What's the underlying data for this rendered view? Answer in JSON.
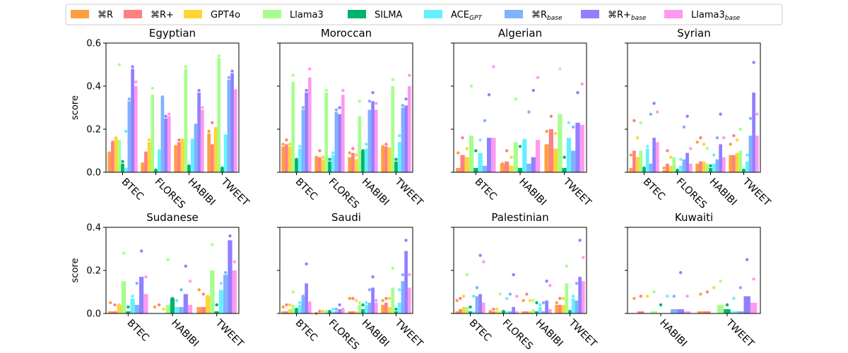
{
  "legend": {
    "items": [
      {
        "label": "⌘R",
        "sub": "",
        "color": "#ff9f40"
      },
      {
        "label": "⌘R+",
        "sub": "",
        "color": "#ff8080"
      },
      {
        "label": "GPT4o",
        "sub": "",
        "color": "#ffd633"
      },
      {
        "label": "Llama3",
        "sub": "",
        "color": "#a6ff8c"
      },
      {
        "label": "SILMA",
        "sub": "",
        "color": "#00b36b"
      },
      {
        "label": "ACE",
        "sub": "GPT",
        "color": "#66f0ff"
      },
      {
        "label": "⌘R",
        "sub": "base",
        "color": "#7fb2ff"
      },
      {
        "label": "⌘R+",
        "sub": "base",
        "color": "#9080ff"
      },
      {
        "label": "Llama3",
        "sub": "base",
        "color": "#ff99f0"
      }
    ]
  },
  "chart_data": [
    {
      "type": "bar",
      "title": "Egyptian",
      "ylabel": "score",
      "ylim": [
        0,
        0.6
      ],
      "yticks": [
        "0.0",
        "0.2",
        "0.4",
        "0.6"
      ],
      "categories": [
        "BTEC",
        "FLORES",
        "HABIBI",
        "TWEET"
      ],
      "values": [
        [
          0.09,
          0.14,
          0.16,
          0.15,
          0.04,
          0.02,
          0.33,
          0.48,
          0.4
        ],
        [
          0.04,
          0.09,
          0.14,
          0.36,
          0.01,
          0.1,
          0.35,
          0.25,
          0.26
        ],
        [
          0.12,
          0.14,
          0.15,
          0.48,
          0.03,
          0.15,
          0.22,
          0.37,
          0.29
        ],
        [
          0.18,
          0.13,
          0.21,
          0.53,
          0.02,
          0.17,
          0.43,
          0.46,
          0.38
        ]
      ],
      "points": [
        [
          0.09,
          0.14,
          0.16,
          0.5,
          0.05,
          0.19,
          0.34,
          0.49,
          0.42
        ],
        [
          0.04,
          0.09,
          0.15,
          0.39,
          0.01,
          0.1,
          0.35,
          0.26,
          0.27
        ],
        [
          0.12,
          0.15,
          0.15,
          0.49,
          0.03,
          0.15,
          0.22,
          0.38,
          0.3
        ],
        [
          0.19,
          0.23,
          0.2,
          0.54,
          0.02,
          0.17,
          0.44,
          0.47,
          0.38
        ]
      ]
    },
    {
      "type": "bar",
      "title": "Moroccan",
      "ylabel": "",
      "ylim": [
        0,
        0.6
      ],
      "yticks": [],
      "categories": [
        "BTEC",
        "FLORES",
        "HABIBI",
        "TWEET"
      ],
      "values": [
        [
          0.12,
          0.13,
          0.12,
          0.42,
          0.06,
          0.11,
          0.29,
          0.37,
          0.44
        ],
        [
          0.07,
          0.07,
          0.06,
          0.37,
          0.05,
          0.08,
          0.28,
          0.27,
          0.36
        ],
        [
          0.07,
          0.09,
          0.06,
          0.26,
          0.1,
          0.11,
          0.29,
          0.33,
          0.29
        ],
        [
          0.12,
          0.12,
          0.11,
          0.4,
          0.05,
          0.14,
          0.3,
          0.31,
          0.4
        ]
      ],
      "points": [
        [
          0.13,
          0.15,
          0.13,
          0.45,
          0.06,
          0.12,
          0.3,
          0.38,
          0.48
        ],
        [
          0.07,
          0.1,
          0.07,
          0.38,
          0.06,
          0.09,
          0.29,
          0.3,
          0.38
        ],
        [
          0.09,
          0.11,
          0.08,
          0.33,
          0.1,
          0.13,
          0.33,
          0.37,
          0.32
        ],
        [
          0.12,
          0.13,
          0.11,
          0.43,
          0.06,
          0.17,
          0.31,
          0.34,
          0.45
        ]
      ]
    },
    {
      "type": "bar",
      "title": "Algerian",
      "ylabel": "",
      "ylim": [
        0,
        0.6
      ],
      "yticks": [],
      "categories": [
        "BTEC",
        "HABIBI",
        "TWEET"
      ],
      "values": [
        [
          0.02,
          0.08,
          0.07,
          0.17,
          0.02,
          0.09,
          0.03,
          0.16,
          0.16
        ],
        [
          0.04,
          0.05,
          0.03,
          0.14,
          0.02,
          0.15,
          0.04,
          0.07,
          0.15
        ],
        [
          0.13,
          0.2,
          0.11,
          0.27,
          0.02,
          0.16,
          0.1,
          0.23,
          0.22
        ]
      ],
      "points": [
        [
          0.09,
          0.16,
          0.11,
          0.4,
          0.1,
          0.15,
          0.24,
          0.36,
          0.49
        ],
        [
          0.04,
          0.1,
          0.07,
          0.34,
          0.12,
          0.15,
          0.28,
          0.38,
          0.44
        ],
        [
          0.19,
          0.26,
          0.18,
          0.48,
          0.07,
          0.23,
          0.21,
          0.37,
          0.41
        ]
      ]
    },
    {
      "type": "bar",
      "title": "Syrian",
      "ylabel": "",
      "ylim": [
        0,
        0.6
      ],
      "yticks": [],
      "categories": [
        "BTEC",
        "FLORES",
        "HABIBI",
        "TWEET"
      ],
      "values": [
        [
          0.02,
          0.1,
          0.07,
          0.1,
          0.02,
          0.11,
          0.04,
          0.16,
          0.14
        ],
        [
          0.01,
          0.04,
          0.03,
          0.07,
          0.01,
          0.03,
          0.06,
          0.09,
          0.04
        ],
        [
          0.04,
          0.05,
          0.05,
          0.04,
          0.02,
          0.04,
          0.06,
          0.13,
          0.07
        ],
        [
          0.08,
          0.08,
          0.09,
          0.1,
          0.01,
          0.05,
          0.17,
          0.37,
          0.17
        ]
      ],
      "points": [
        [
          0.08,
          0.24,
          0.16,
          0.23,
          0.02,
          0.12,
          0.27,
          0.32,
          0.28
        ],
        [
          0.02,
          0.1,
          0.07,
          0.06,
          0.01,
          0.06,
          0.21,
          0.26,
          0.11
        ],
        [
          0.14,
          0.16,
          0.13,
          0.11,
          0.03,
          0.08,
          0.16,
          0.27,
          0.16
        ],
        [
          0.13,
          0.17,
          0.15,
          0.2,
          0.01,
          0.08,
          0.25,
          0.51,
          0.27
        ]
      ]
    },
    {
      "type": "bar",
      "title": "Sudanese",
      "ylabel": "score",
      "ylim": [
        0,
        0.4
      ],
      "yticks": [
        "0.0",
        "0.2",
        "0.4"
      ],
      "categories": [
        "BTEC",
        "HABIBI",
        "TWEET"
      ],
      "values": [
        [
          0.01,
          0.01,
          0.04,
          0.15,
          0.01,
          0.07,
          0.04,
          0.17,
          0.09
        ],
        [
          0.0,
          0.0,
          0.0,
          0.04,
          0.07,
          0.03,
          0.03,
          0.09,
          0.04
        ],
        [
          0.03,
          0.03,
          0.08,
          0.2,
          0.01,
          0.11,
          0.18,
          0.34,
          0.2
        ]
      ],
      "points": [
        [
          0.05,
          0.04,
          0.04,
          0.28,
          0.03,
          0.08,
          0.14,
          0.29,
          0.17
        ],
        [
          0.03,
          0.04,
          0.02,
          0.25,
          0.07,
          0.06,
          0.11,
          0.22,
          0.15
        ],
        [
          0.11,
          0.09,
          0.08,
          0.32,
          0.04,
          0.14,
          0.19,
          0.36,
          0.24
        ]
      ]
    },
    {
      "type": "bar",
      "title": "Saudi",
      "ylabel": "",
      "ylim": [
        0,
        0.4
      ],
      "yticks": [],
      "categories": [
        "BTEC",
        "FLORES",
        "HABIBI",
        "TWEET"
      ],
      "values": [
        [
          0.01,
          0.01,
          0.02,
          0.04,
          0.02,
          0.04,
          0.08,
          0.14,
          0.05
        ],
        [
          0.0,
          0.0,
          0.0,
          0.01,
          0.01,
          0.01,
          0.01,
          0.02,
          0.02
        ],
        [
          0.01,
          0.01,
          0.01,
          0.04,
          0.02,
          0.04,
          0.05,
          0.12,
          0.05
        ],
        [
          0.04,
          0.05,
          0.03,
          0.12,
          0.01,
          0.05,
          0.15,
          0.29,
          0.12
        ]
      ],
      "points": [
        [
          0.03,
          0.04,
          0.04,
          0.1,
          0.02,
          0.05,
          0.08,
          0.23,
          0.05
        ],
        [
          0.0,
          0.01,
          0.01,
          0.01,
          0.01,
          0.02,
          0.02,
          0.04,
          0.02
        ],
        [
          0.07,
          0.07,
          0.06,
          0.05,
          0.04,
          0.05,
          0.11,
          0.17,
          0.06
        ],
        [
          0.06,
          0.07,
          0.07,
          0.21,
          0.02,
          0.11,
          0.18,
          0.34,
          0.18
        ]
      ]
    },
    {
      "type": "bar",
      "title": "Palestinian",
      "ylabel": "",
      "ylim": [
        0,
        0.4
      ],
      "yticks": [],
      "categories": [
        "BTEC",
        "FLORES",
        "HABIBI",
        "TWEET"
      ],
      "values": [
        [
          0.01,
          0.02,
          0.03,
          0.03,
          0.01,
          0.01,
          0.08,
          0.09,
          0.05
        ],
        [
          0.01,
          0.01,
          0.01,
          0.01,
          0.01,
          0.01,
          0.01,
          0.03,
          0.01
        ],
        [
          0.01,
          0.01,
          0.01,
          0.02,
          0.01,
          0.03,
          0.01,
          0.06,
          0.02
        ],
        [
          0.04,
          0.04,
          0.04,
          0.14,
          0.01,
          0.07,
          0.06,
          0.17,
          0.15
        ]
      ],
      "points": [
        [
          0.06,
          0.07,
          0.08,
          0.18,
          0.03,
          0.08,
          0.12,
          0.27,
          0.24
        ],
        [
          0.01,
          0.02,
          0.02,
          0.09,
          0.01,
          0.07,
          0.09,
          0.18,
          0.08
        ],
        [
          0.06,
          0.09,
          0.06,
          0.06,
          0.05,
          0.04,
          0.05,
          0.15,
          0.13
        ],
        [
          0.05,
          0.07,
          0.07,
          0.22,
          0.01,
          0.08,
          0.14,
          0.34,
          0.26
        ]
      ]
    },
    {
      "type": "bar",
      "title": "Kuwaiti",
      "ylabel": "",
      "ylim": [
        0,
        0.4
      ],
      "yticks": [],
      "categories": [
        "HABIBI",
        "TWEET"
      ],
      "values": [
        [
          0.0,
          0.01,
          0.0,
          0.01,
          0.0,
          0.0,
          0.02,
          0.02,
          0.01
        ],
        [
          0.01,
          0.01,
          0.0,
          0.04,
          0.02,
          0.01,
          0.01,
          0.08,
          0.05
        ]
      ],
      "points": [
        [
          0.07,
          0.08,
          0.08,
          0.1,
          0.04,
          0.08,
          0.08,
          0.19,
          0.08
        ],
        [
          0.09,
          0.1,
          0.12,
          0.15,
          0.04,
          0.07,
          0.12,
          0.25,
          0.16
        ]
      ]
    }
  ]
}
